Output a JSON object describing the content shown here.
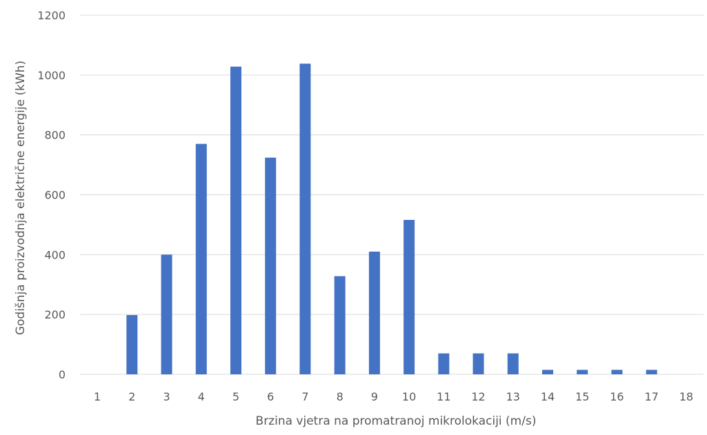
{
  "chart_data": {
    "type": "bar",
    "title": "",
    "xlabel": "Brzina vjetra na promatranoj mikrolokaciji (m/s)",
    "ylabel": "Godišnja proizvodnja električne energije (kWh)",
    "categories": [
      "1",
      "2",
      "3",
      "4",
      "5",
      "6",
      "7",
      "8",
      "9",
      "10",
      "11",
      "12",
      "13",
      "14",
      "15",
      "16",
      "17",
      "18"
    ],
    "values": [
      0,
      198,
      400,
      770,
      1028,
      724,
      1038,
      328,
      410,
      516,
      70,
      70,
      70,
      15,
      15,
      15,
      15,
      0
    ],
    "ylim": [
      0,
      1200
    ],
    "yticks": [
      0,
      200,
      400,
      600,
      800,
      1000,
      1200
    ],
    "grid": true,
    "legend": "none",
    "colors": {
      "bar": "#4472C4",
      "grid": "#D9D9D9",
      "text": "#595959"
    }
  }
}
